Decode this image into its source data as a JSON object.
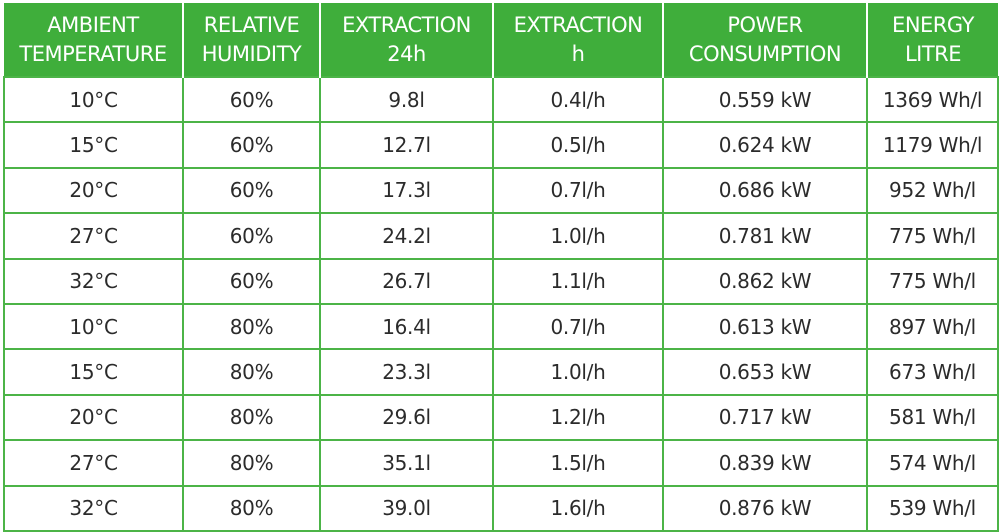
{
  "table": {
    "header": [
      [
        "AMBIENT",
        "TEMPERATURE"
      ],
      [
        "RELATIVE",
        "HUMIDITY"
      ],
      [
        "EXTRACTION",
        "24h"
      ],
      [
        "EXTRACTION",
        "h"
      ],
      [
        "POWER",
        "CONSUMPTION"
      ],
      [
        "ENERGY",
        "LITRE"
      ]
    ],
    "rows": [
      [
        "10°C",
        "60%",
        "9.8l",
        "0.4l/h",
        "0.559 kW",
        "1369 Wh/l"
      ],
      [
        "15°C",
        "60%",
        "12.7l",
        "0.5l/h",
        "0.624 kW",
        "1179 Wh/l"
      ],
      [
        "20°C",
        "60%",
        "17.3l",
        "0.7l/h",
        "0.686 kW",
        "952 Wh/l"
      ],
      [
        "27°C",
        "60%",
        "24.2l",
        "1.0l/h",
        "0.781 kW",
        "775 Wh/l"
      ],
      [
        "32°C",
        "60%",
        "26.7l",
        "1.1l/h",
        "0.862 kW",
        "775 Wh/l"
      ],
      [
        "10°C",
        "80%",
        "16.4l",
        "0.7l/h",
        "0.613 kW",
        "897 Wh/l"
      ],
      [
        "15°C",
        "80%",
        "23.3l",
        "1.0l/h",
        "0.653 kW",
        "673 Wh/l"
      ],
      [
        "20°C",
        "80%",
        "29.6l",
        "1.2l/h",
        "0.717 kW",
        "581 Wh/l"
      ],
      [
        "27°C",
        "80%",
        "35.1l",
        "1.5l/h",
        "0.839 kW",
        "574 Wh/l"
      ],
      [
        "32°C",
        "80%",
        "39.0l",
        "1.6l/h",
        "0.876 kW",
        "539 Wh/l"
      ]
    ]
  }
}
